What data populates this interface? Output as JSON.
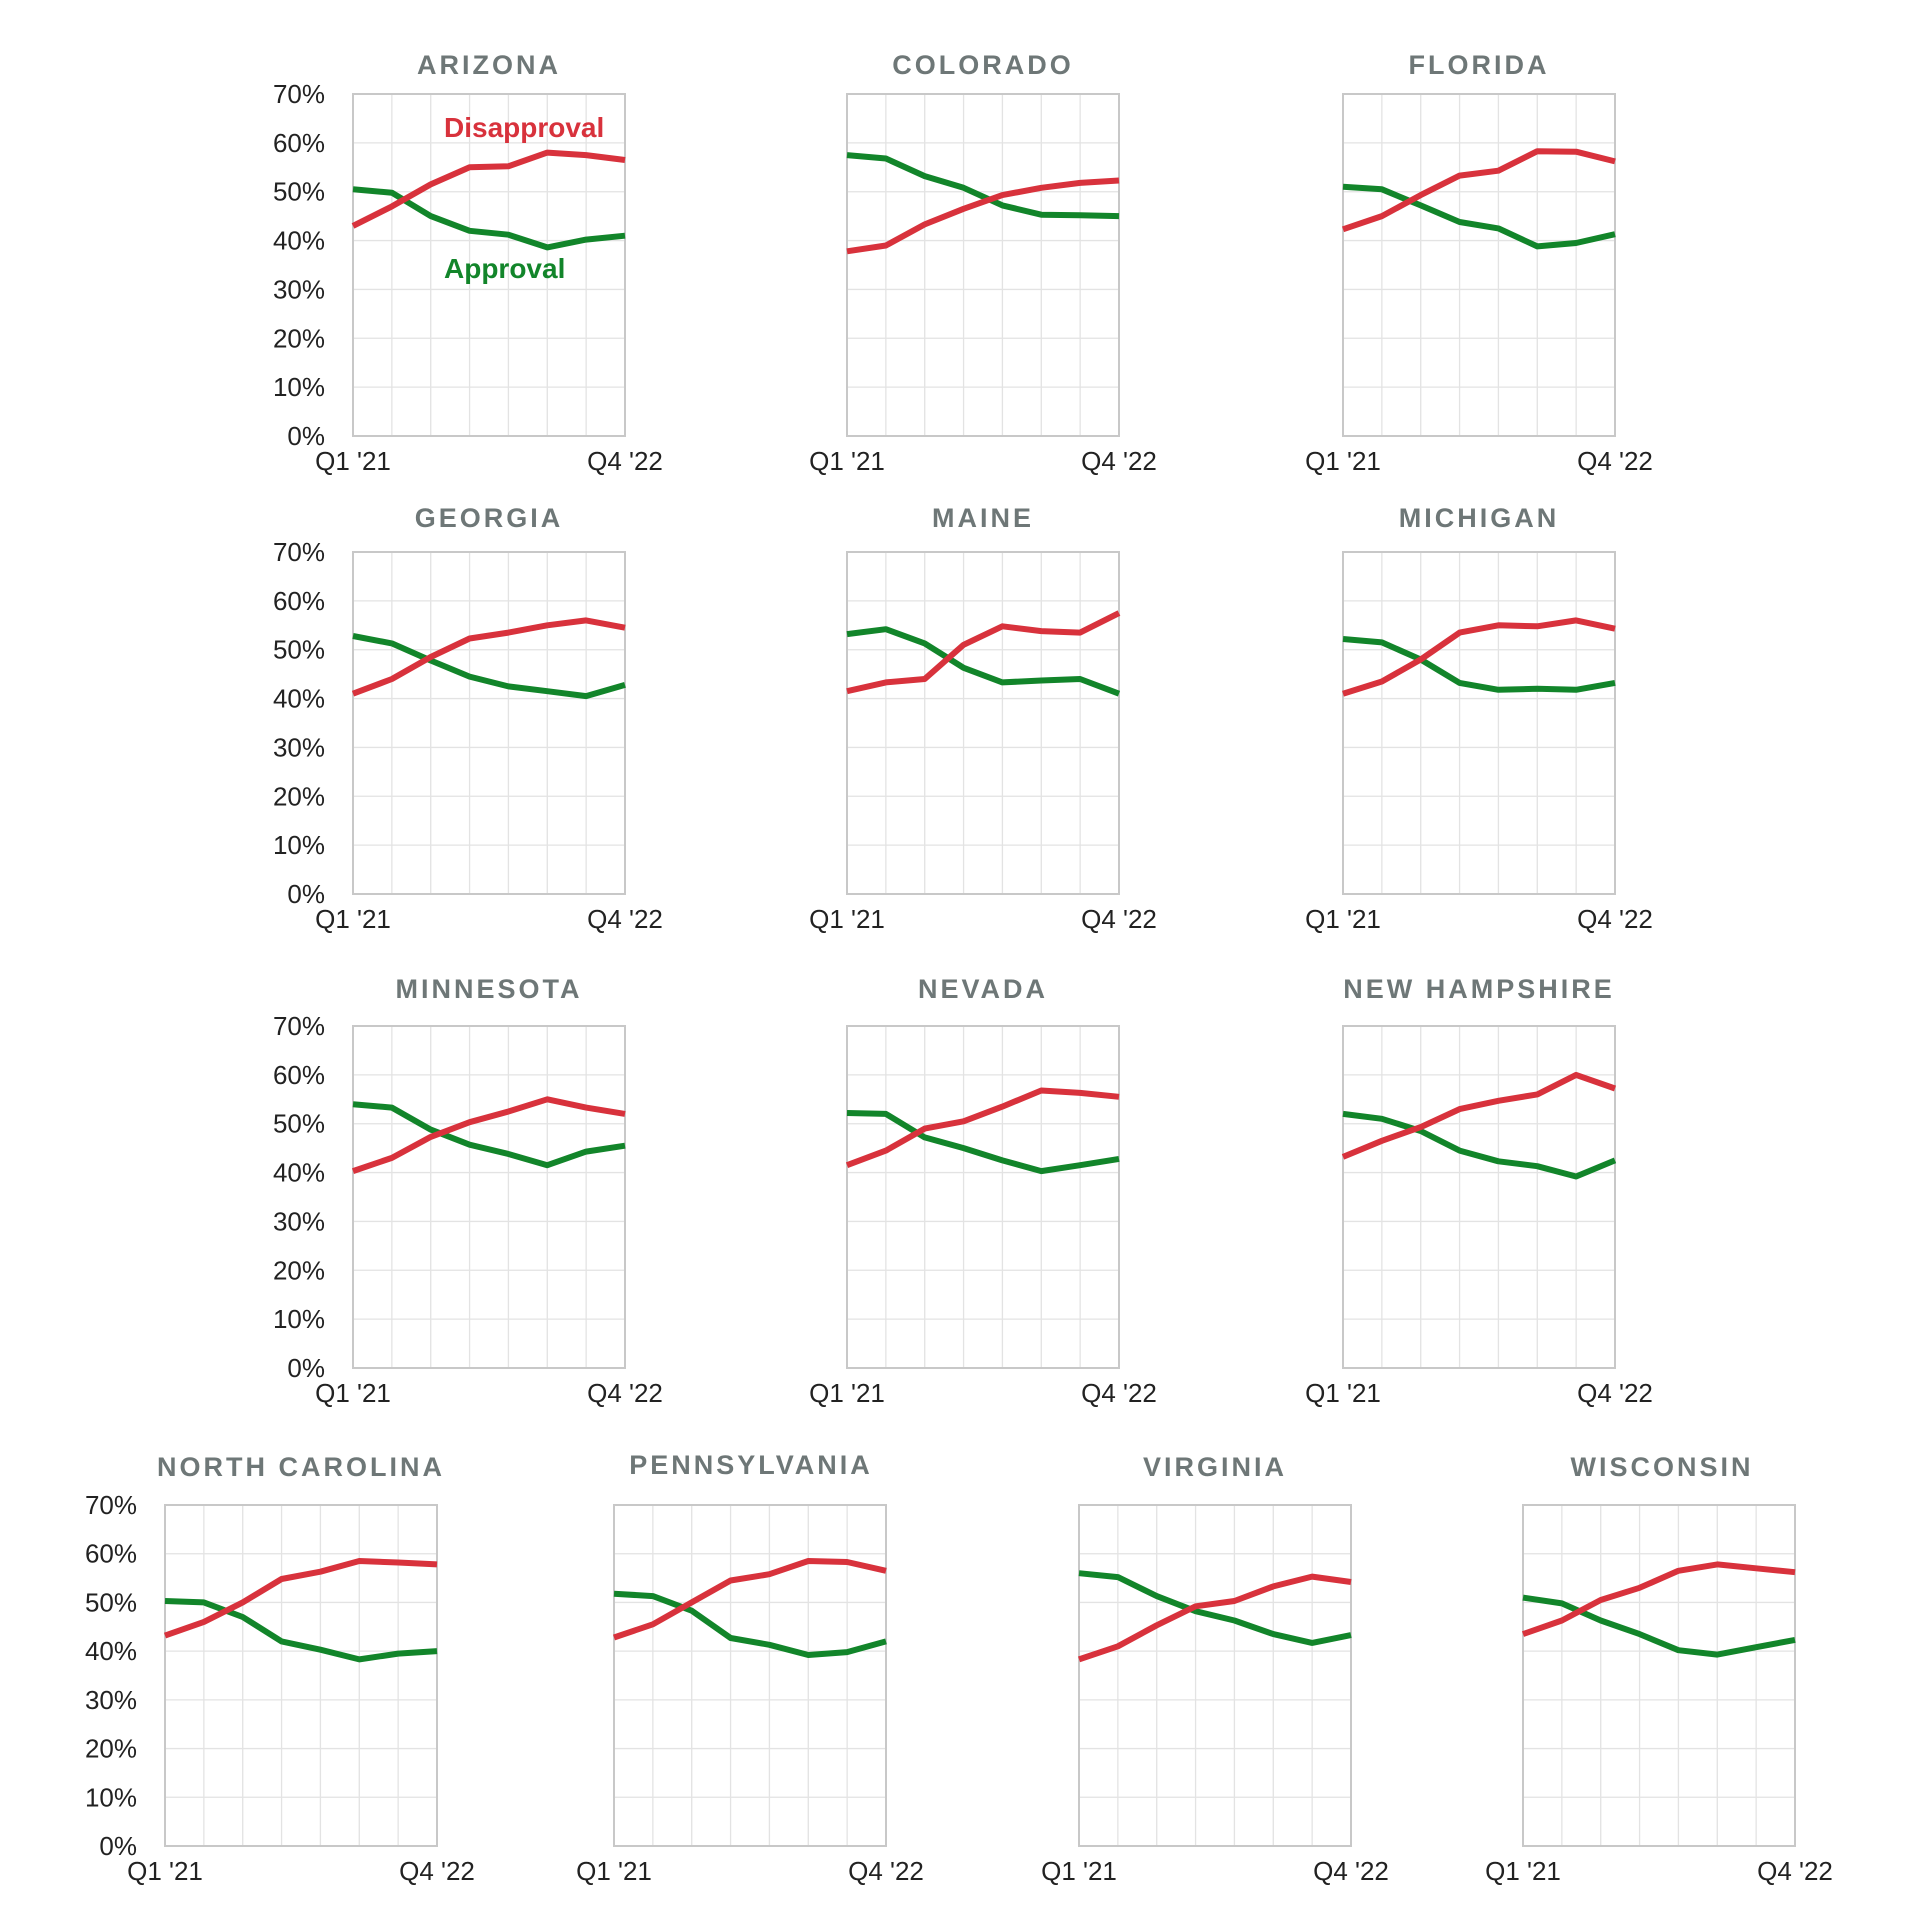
{
  "colors": {
    "disapproval": "#d8323c",
    "approval": "#12852a",
    "title": "#6e7777"
  },
  "chart_data": [
    {
      "type": "line",
      "title": "ARIZONA",
      "x_first": "Q1 '21",
      "x_last": "Q4 '22",
      "ylim": [
        0,
        70
      ],
      "yticks": [
        "0%",
        "10%",
        "20%",
        "30%",
        "40%",
        "50%",
        "60%",
        "70%"
      ],
      "legend": {
        "disapproval": "Disapproval",
        "approval": "Approval"
      },
      "series": [
        {
          "name": "Disapproval",
          "values": [
            43,
            47,
            51.5,
            55,
            55.2,
            58,
            57.5,
            56.5
          ]
        },
        {
          "name": "Approval",
          "values": [
            50.5,
            49.8,
            45,
            42,
            41.2,
            38.6,
            40.2,
            41
          ]
        }
      ]
    },
    {
      "type": "line",
      "title": "COLORADO",
      "x_first": "Q1 '21",
      "x_last": "Q4 '22",
      "ylim": [
        0,
        70
      ],
      "series": [
        {
          "values": [
            37.8,
            39,
            43.3,
            46.5,
            49.3,
            50.8,
            51.8,
            52.3
          ]
        },
        {
          "values": [
            57.5,
            56.8,
            53.2,
            50.8,
            47.2,
            45.3,
            45.2,
            45
          ]
        }
      ]
    },
    {
      "type": "line",
      "title": "FLORIDA",
      "x_first": "Q1 '21",
      "x_last": "Q4 '22",
      "ylim": [
        0,
        70
      ],
      "series": [
        {
          "values": [
            42.3,
            45,
            49.3,
            53.3,
            54.3,
            58.3,
            58.2,
            56.2
          ]
        },
        {
          "values": [
            51,
            50.5,
            47.2,
            43.8,
            42.5,
            38.8,
            39.5,
            41.3
          ]
        }
      ]
    },
    {
      "type": "line",
      "title": "GEORGIA",
      "x_first": "Q1 '21",
      "x_last": "Q4 '22",
      "ylim": [
        0,
        70
      ],
      "yticks": [
        "0%",
        "10%",
        "20%",
        "30%",
        "40%",
        "50%",
        "60%",
        "70%"
      ],
      "series": [
        {
          "values": [
            41,
            44,
            48.5,
            52.3,
            53.5,
            55,
            56,
            54.5
          ]
        },
        {
          "values": [
            52.8,
            51.3,
            47.8,
            44.5,
            42.5,
            41.5,
            40.5,
            42.8
          ]
        }
      ]
    },
    {
      "type": "line",
      "title": "MAINE",
      "x_first": "Q1 '21",
      "x_last": "Q4 '22",
      "ylim": [
        0,
        70
      ],
      "series": [
        {
          "values": [
            41.5,
            43.3,
            44,
            51,
            54.8,
            53.8,
            53.5,
            57.5
          ]
        },
        {
          "values": [
            53.2,
            54.2,
            51.3,
            46.3,
            43.3,
            43.7,
            44,
            41
          ]
        }
      ]
    },
    {
      "type": "line",
      "title": "MICHIGAN",
      "x_first": "Q1 '21",
      "x_last": "Q4 '22",
      "ylim": [
        0,
        70
      ],
      "series": [
        {
          "values": [
            41,
            43.5,
            48,
            53.5,
            55,
            54.8,
            56,
            54.3
          ]
        },
        {
          "values": [
            52.2,
            51.5,
            48,
            43.2,
            41.8,
            42,
            41.8,
            43.2
          ]
        }
      ]
    },
    {
      "type": "line",
      "title": "MINNESOTA",
      "x_first": "Q1 '21",
      "x_last": "Q4 '22",
      "ylim": [
        0,
        70
      ],
      "yticks": [
        "0%",
        "10%",
        "20%",
        "30%",
        "40%",
        "50%",
        "60%",
        "70%"
      ],
      "series": [
        {
          "values": [
            40.3,
            43,
            47.3,
            50.3,
            52.5,
            55,
            53.3,
            52
          ]
        },
        {
          "values": [
            54,
            53.3,
            48.8,
            45.7,
            43.8,
            41.5,
            44.3,
            45.5
          ]
        }
      ]
    },
    {
      "type": "line",
      "title": "NEVADA",
      "x_first": "Q1 '21",
      "x_last": "Q4 '22",
      "ylim": [
        0,
        70
      ],
      "series": [
        {
          "values": [
            41.5,
            44.5,
            49,
            50.5,
            53.5,
            56.8,
            56.3,
            55.5
          ]
        },
        {
          "values": [
            52.2,
            52,
            47.2,
            45,
            42.5,
            40.3,
            41.5,
            42.8
          ]
        }
      ]
    },
    {
      "type": "line",
      "title": "NEW HAMPSHIRE",
      "x_first": "Q1 '21",
      "x_last": "Q4 '22",
      "ylim": [
        0,
        70
      ],
      "series": [
        {
          "values": [
            43.2,
            46.5,
            49.3,
            53,
            54.7,
            56,
            60,
            57.2
          ]
        },
        {
          "values": [
            52,
            51,
            48.5,
            44.5,
            42.3,
            41.3,
            39.2,
            42.5
          ]
        }
      ]
    },
    {
      "type": "line",
      "title": "NORTH CAROLINA",
      "x_first": "Q1 '21",
      "x_last": "Q4 '22",
      "ylim": [
        0,
        70
      ],
      "yticks": [
        "0%",
        "10%",
        "20%",
        "30%",
        "40%",
        "50%",
        "60%",
        "70%"
      ],
      "series": [
        {
          "values": [
            43.2,
            46,
            50,
            54.8,
            56.3,
            58.5,
            58.2,
            57.8
          ]
        },
        {
          "values": [
            50.3,
            50,
            47,
            42,
            40.3,
            38.3,
            39.5,
            40
          ]
        }
      ]
    },
    {
      "type": "line",
      "title": "PENNSYLVANIA",
      "x_first": "Q1 '21",
      "x_last": "Q4 '22",
      "ylim": [
        0,
        70
      ],
      "series": [
        {
          "values": [
            42.8,
            45.5,
            50,
            54.5,
            55.8,
            58.5,
            58.3,
            56.5
          ]
        },
        {
          "values": [
            51.8,
            51.3,
            48.3,
            42.7,
            41.3,
            39.2,
            39.8,
            42
          ]
        }
      ]
    },
    {
      "type": "line",
      "title": "VIRGINIA",
      "x_first": "Q1 '21",
      "x_last": "Q4 '22",
      "ylim": [
        0,
        70
      ],
      "series": [
        {
          "values": [
            38.3,
            41,
            45.3,
            49.2,
            50.3,
            53.3,
            55.3,
            54.2
          ]
        },
        {
          "values": [
            56,
            55.2,
            51.3,
            48.2,
            46.3,
            43.5,
            41.7,
            43.3
          ]
        }
      ]
    },
    {
      "type": "line",
      "title": "WISCONSIN",
      "x_first": "Q1 '21",
      "x_last": "Q4 '22",
      "ylim": [
        0,
        70
      ],
      "series": [
        {
          "values": [
            43.5,
            46.3,
            50.5,
            53,
            56.5,
            57.8,
            57,
            56.2
          ]
        },
        {
          "values": [
            51,
            49.8,
            46.3,
            43.5,
            40.2,
            39.3,
            40.8,
            42.3
          ]
        }
      ]
    }
  ]
}
